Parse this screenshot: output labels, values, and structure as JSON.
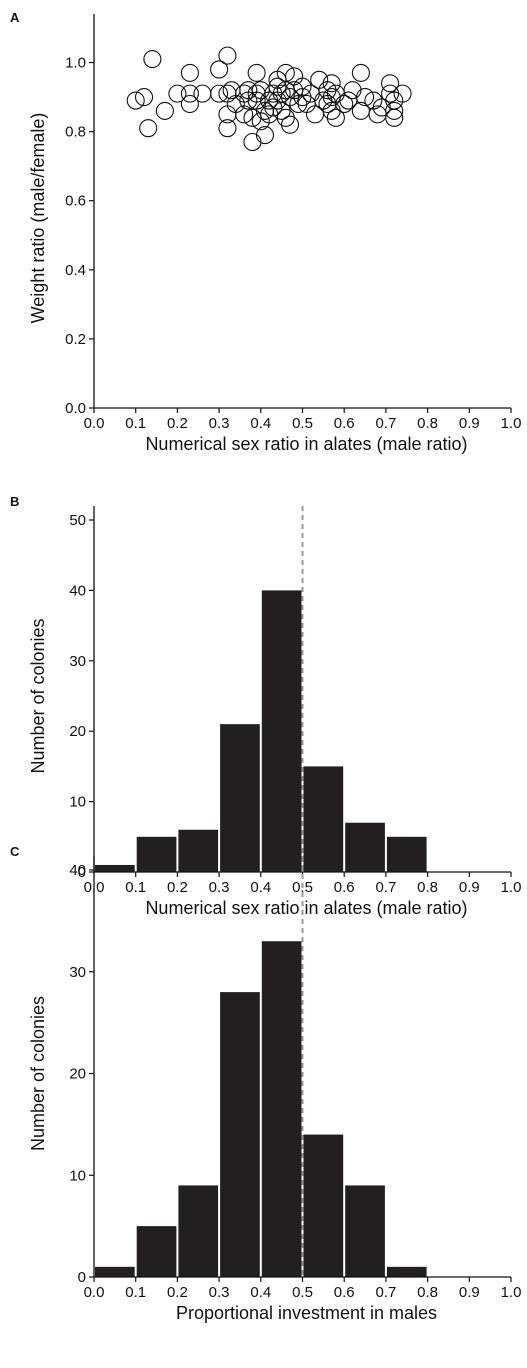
{
  "chart_data": [
    {
      "panel": "A",
      "type": "scatter",
      "xlabel": "Numerical sex ratio in alates (male ratio)",
      "ylabel": "Weight ratio (male/female)",
      "xlim": [
        0,
        1
      ],
      "ylim": [
        0,
        1.1
      ],
      "xticks": [
        "0.0",
        "0.1",
        "0.2",
        "0.3",
        "0.4",
        "0.5",
        "0.6",
        "0.7",
        "0.8",
        "0.9",
        "1.0"
      ],
      "yticks": [
        "0.0",
        "0.2",
        "0.4",
        "0.6",
        "0.8",
        "1.0"
      ],
      "marker": "open-circle",
      "points": [
        {
          "x": 0.1,
          "y": 0.89
        },
        {
          "x": 0.12,
          "y": 0.9
        },
        {
          "x": 0.13,
          "y": 0.81
        },
        {
          "x": 0.14,
          "y": 1.01
        },
        {
          "x": 0.17,
          "y": 0.86
        },
        {
          "x": 0.2,
          "y": 0.91
        },
        {
          "x": 0.23,
          "y": 0.97
        },
        {
          "x": 0.23,
          "y": 0.88
        },
        {
          "x": 0.23,
          "y": 0.91
        },
        {
          "x": 0.26,
          "y": 0.91
        },
        {
          "x": 0.3,
          "y": 0.98
        },
        {
          "x": 0.3,
          "y": 0.91
        },
        {
          "x": 0.32,
          "y": 1.02
        },
        {
          "x": 0.32,
          "y": 0.91
        },
        {
          "x": 0.32,
          "y": 0.85
        },
        {
          "x": 0.32,
          "y": 0.81
        },
        {
          "x": 0.33,
          "y": 0.92
        },
        {
          "x": 0.34,
          "y": 0.88
        },
        {
          "x": 0.36,
          "y": 0.91
        },
        {
          "x": 0.36,
          "y": 0.85
        },
        {
          "x": 0.37,
          "y": 0.89
        },
        {
          "x": 0.37,
          "y": 0.92
        },
        {
          "x": 0.38,
          "y": 0.84
        },
        {
          "x": 0.38,
          "y": 0.77
        },
        {
          "x": 0.39,
          "y": 0.97
        },
        {
          "x": 0.39,
          "y": 0.91
        },
        {
          "x": 0.39,
          "y": 0.89
        },
        {
          "x": 0.4,
          "y": 0.83
        },
        {
          "x": 0.4,
          "y": 0.92
        },
        {
          "x": 0.41,
          "y": 0.86
        },
        {
          "x": 0.41,
          "y": 0.79
        },
        {
          "x": 0.42,
          "y": 0.89
        },
        {
          "x": 0.42,
          "y": 0.85
        },
        {
          "x": 0.43,
          "y": 0.91
        },
        {
          "x": 0.43,
          "y": 0.87
        },
        {
          "x": 0.44,
          "y": 0.93
        },
        {
          "x": 0.44,
          "y": 0.89
        },
        {
          "x": 0.44,
          "y": 0.95
        },
        {
          "x": 0.45,
          "y": 0.91
        },
        {
          "x": 0.45,
          "y": 0.86
        },
        {
          "x": 0.46,
          "y": 0.92
        },
        {
          "x": 0.46,
          "y": 0.97
        },
        {
          "x": 0.46,
          "y": 0.84
        },
        {
          "x": 0.47,
          "y": 0.9
        },
        {
          "x": 0.47,
          "y": 0.82
        },
        {
          "x": 0.48,
          "y": 0.96
        },
        {
          "x": 0.48,
          "y": 0.92
        },
        {
          "x": 0.49,
          "y": 0.88
        },
        {
          "x": 0.5,
          "y": 0.93
        },
        {
          "x": 0.5,
          "y": 0.9
        },
        {
          "x": 0.51,
          "y": 0.88
        },
        {
          "x": 0.52,
          "y": 0.91
        },
        {
          "x": 0.53,
          "y": 0.85
        },
        {
          "x": 0.54,
          "y": 0.95
        },
        {
          "x": 0.55,
          "y": 0.89
        },
        {
          "x": 0.56,
          "y": 0.92
        },
        {
          "x": 0.56,
          "y": 0.88
        },
        {
          "x": 0.57,
          "y": 0.94
        },
        {
          "x": 0.57,
          "y": 0.9
        },
        {
          "x": 0.57,
          "y": 0.86
        },
        {
          "x": 0.58,
          "y": 0.84
        },
        {
          "x": 0.58,
          "y": 0.91
        },
        {
          "x": 0.6,
          "y": 0.88
        },
        {
          "x": 0.61,
          "y": 0.89
        },
        {
          "x": 0.62,
          "y": 0.92
        },
        {
          "x": 0.64,
          "y": 0.97
        },
        {
          "x": 0.64,
          "y": 0.86
        },
        {
          "x": 0.65,
          "y": 0.9
        },
        {
          "x": 0.67,
          "y": 0.89
        },
        {
          "x": 0.68,
          "y": 0.85
        },
        {
          "x": 0.69,
          "y": 0.87
        },
        {
          "x": 0.71,
          "y": 0.94
        },
        {
          "x": 0.71,
          "y": 0.91
        },
        {
          "x": 0.72,
          "y": 0.86
        },
        {
          "x": 0.72,
          "y": 0.84
        },
        {
          "x": 0.72,
          "y": 0.89
        },
        {
          "x": 0.74,
          "y": 0.91
        }
      ]
    },
    {
      "panel": "B",
      "type": "bar",
      "xlabel": "Numerical sex ratio in alates (male ratio)",
      "ylabel": "Number of colonies",
      "xlim": [
        0,
        1
      ],
      "ylim": [
        0,
        50
      ],
      "xticks": [
        "0.0",
        "0.1",
        "0.2",
        "0.3",
        "0.4",
        "0.5",
        "0.6",
        "0.7",
        "0.8",
        "0.9",
        "1.0"
      ],
      "yticks": [
        "0",
        "10",
        "20",
        "30",
        "40",
        "50"
      ],
      "bin_edges": [
        0.0,
        0.1,
        0.2,
        0.3,
        0.4,
        0.5,
        0.6,
        0.7,
        0.8,
        0.9,
        1.0
      ],
      "values": [
        1,
        5,
        6,
        21,
        40,
        15,
        7,
        5,
        0,
        0
      ],
      "bar_color": "#231f20",
      "reference_line": {
        "x": 0.5,
        "style": "dashed",
        "color": "#999999"
      }
    },
    {
      "panel": "C",
      "type": "bar",
      "xlabel": "Proportional investment in males",
      "ylabel": "Number of colonies",
      "xlim": [
        0,
        1
      ],
      "ylim": [
        0,
        40
      ],
      "xticks": [
        "0.0",
        "0.1",
        "0.2",
        "0.3",
        "0.4",
        "0.5",
        "0.6",
        "0.7",
        "0.8",
        "0.9",
        "1.0"
      ],
      "yticks": [
        "0",
        "10",
        "20",
        "30",
        "40"
      ],
      "bin_edges": [
        0.0,
        0.1,
        0.2,
        0.3,
        0.4,
        0.5,
        0.6,
        0.7,
        0.8,
        0.9,
        1.0
      ],
      "values": [
        1,
        5,
        9,
        28,
        33,
        14,
        9,
        1,
        0,
        0
      ],
      "bar_color": "#231f20",
      "reference_line": {
        "x": 0.5,
        "style": "dashed",
        "color": "#999999"
      }
    }
  ]
}
